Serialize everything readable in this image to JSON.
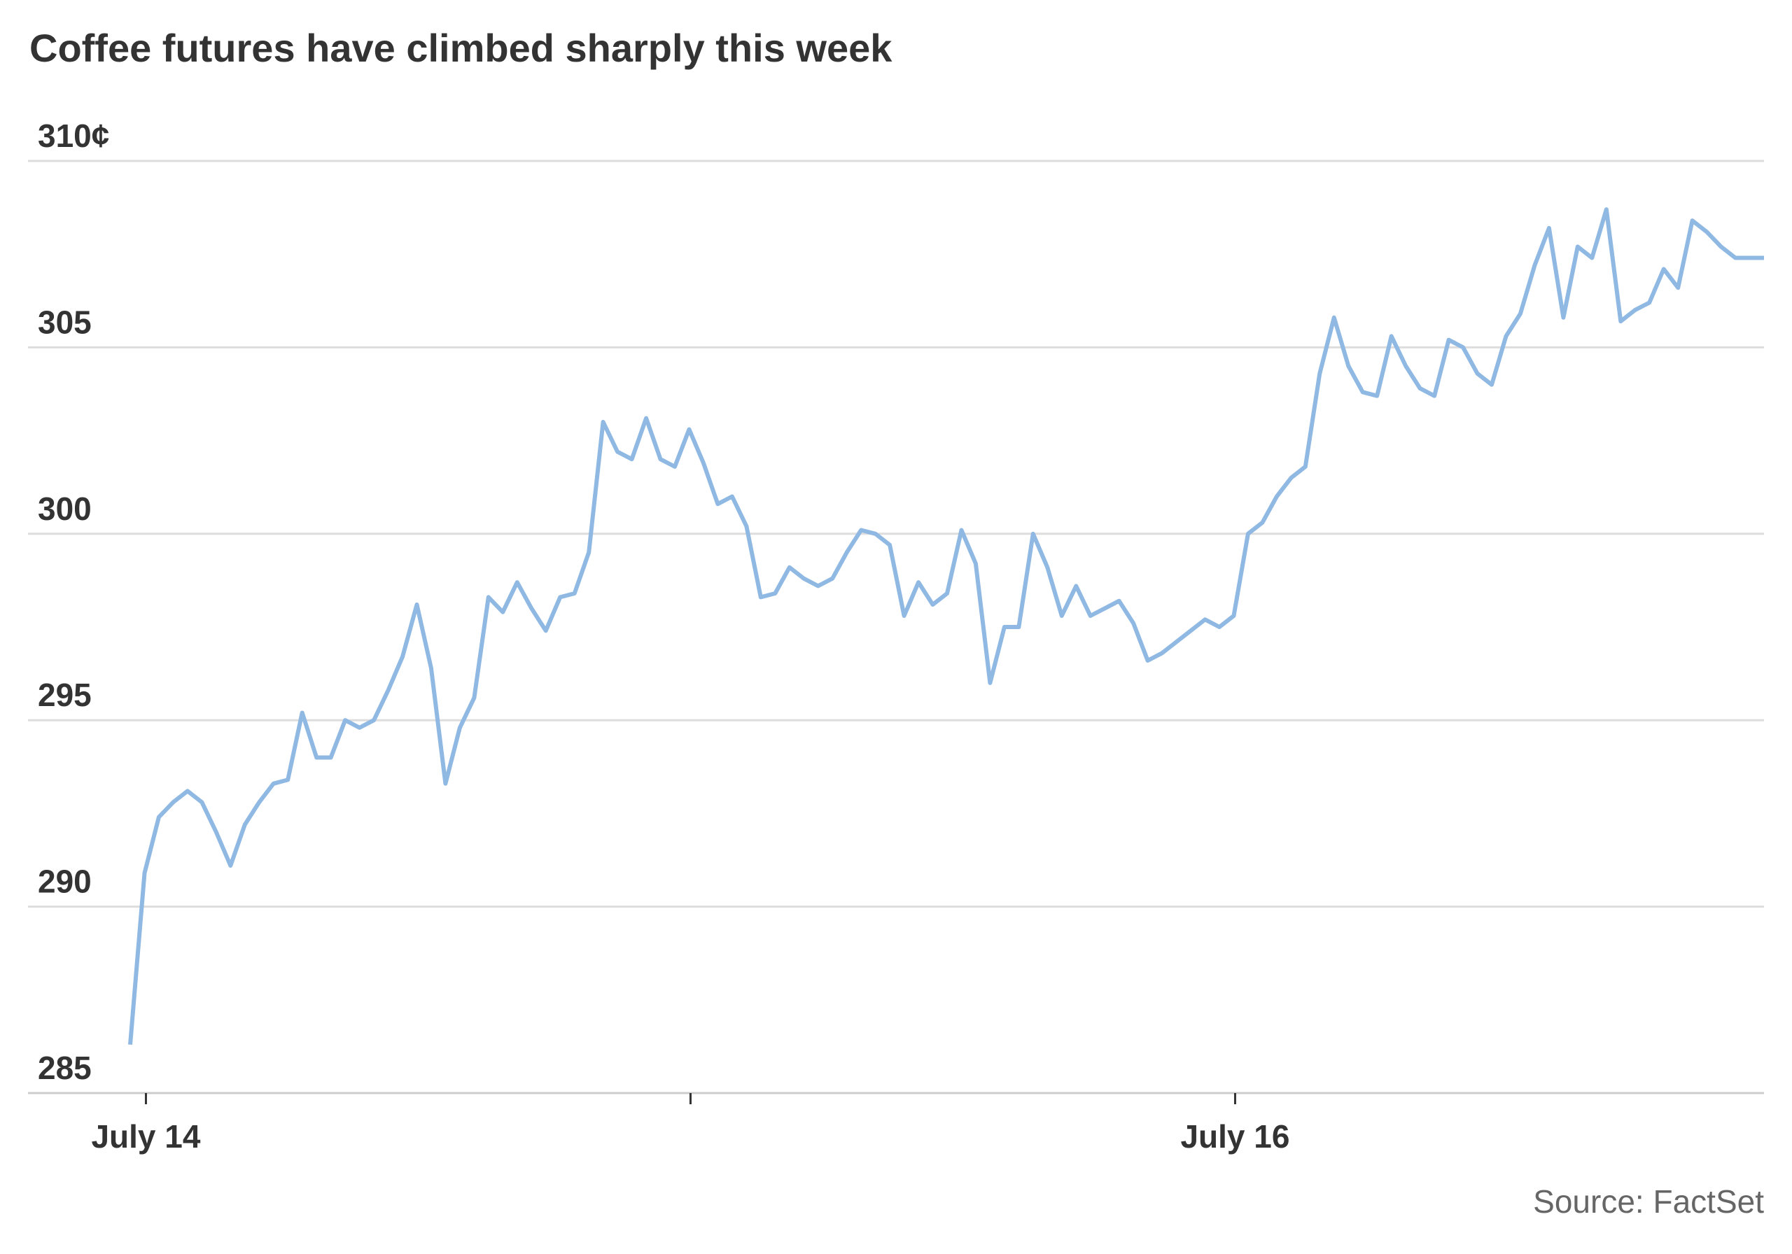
{
  "chart_data": {
    "type": "line",
    "title": "Coffee futures have climbed sharply this week",
    "source": "Source: FactSet",
    "xlabel": "",
    "ylabel": "",
    "ylim": [
      285,
      310
    ],
    "y_ticks": [
      {
        "value": 310,
        "label": "310¢"
      },
      {
        "value": 305,
        "label": "305"
      },
      {
        "value": 300,
        "label": "300"
      },
      {
        "value": 295,
        "label": "295"
      },
      {
        "value": 290,
        "label": "290"
      },
      {
        "value": 285,
        "label": "285"
      }
    ],
    "x_ticks": [
      {
        "index": 1,
        "label": "July 14"
      },
      {
        "index": 39,
        "label": ""
      },
      {
        "index": 77,
        "label": "July 16"
      }
    ],
    "grid": "horizontal",
    "line_color": "#8fb8e3",
    "series": [
      {
        "name": "",
        "values": [
          286.3,
          290.9,
          292.4,
          292.8,
          293.1,
          292.8,
          292.0,
          291.1,
          292.2,
          292.8,
          293.3,
          293.4,
          295.2,
          294.0,
          294.0,
          295.0,
          294.8,
          295.0,
          295.8,
          296.7,
          298.1,
          296.4,
          293.3,
          294.8,
          295.6,
          298.3,
          297.9,
          298.7,
          298.0,
          297.4,
          298.3,
          298.4,
          299.5,
          303.0,
          302.2,
          302.0,
          303.1,
          302.0,
          301.8,
          302.8,
          301.9,
          300.8,
          301.0,
          300.2,
          298.3,
          298.4,
          299.1,
          298.8,
          298.6,
          298.8,
          299.5,
          300.1,
          300.0,
          299.7,
          297.8,
          298.7,
          298.1,
          298.4,
          300.1,
          299.2,
          296.0,
          297.5,
          297.5,
          300.0,
          299.1,
          297.8,
          298.6,
          297.8,
          298.0,
          298.2,
          297.6,
          296.6,
          296.8,
          297.1,
          297.4,
          297.7,
          297.5,
          297.8,
          300.0,
          300.3,
          301.0,
          301.5,
          301.8,
          304.3,
          305.8,
          304.5,
          303.8,
          303.7,
          305.3,
          304.5,
          303.9,
          303.7,
          305.2,
          305.0,
          304.3,
          304.0,
          305.3,
          305.9,
          307.2,
          308.2,
          305.8,
          307.7,
          307.4,
          308.7,
          305.7,
          306.0,
          306.2,
          307.1,
          306.6,
          308.4,
          308.1,
          307.7,
          307.4,
          307.4,
          307.4
        ]
      }
    ]
  }
}
